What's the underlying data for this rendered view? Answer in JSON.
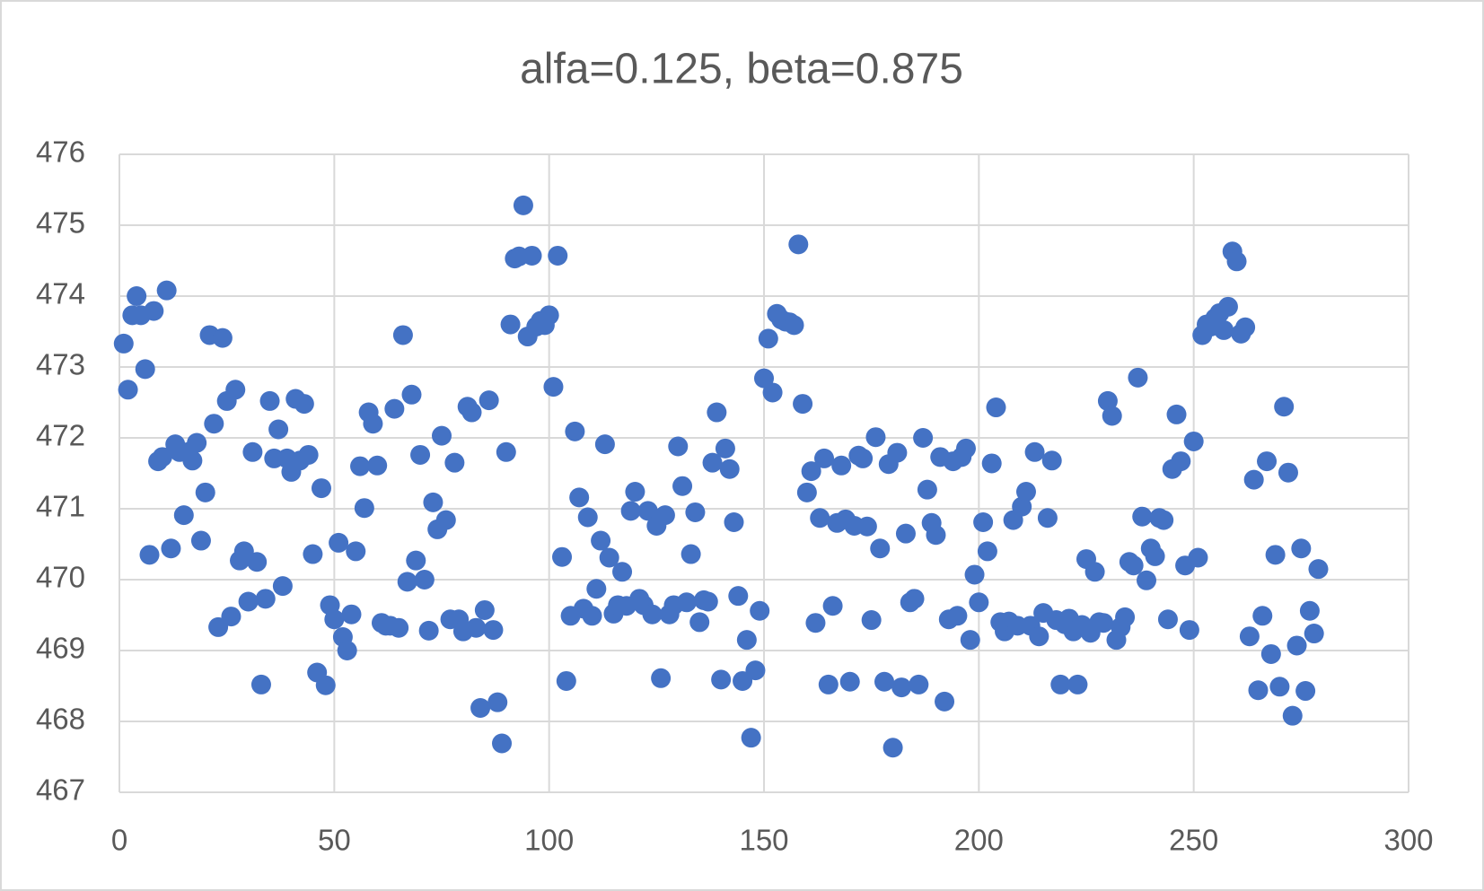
{
  "chart_data": {
    "type": "scatter",
    "title": "alfa=0.125, beta=0.875",
    "color": "#4472c4",
    "grid": true,
    "xlim": [
      0,
      300
    ],
    "xticks": [
      0,
      50,
      100,
      150,
      200,
      250,
      300
    ],
    "ylim": [
      467,
      476
    ],
    "yticks": [
      467,
      468,
      469,
      470,
      471,
      472,
      473,
      474,
      475,
      476
    ],
    "x": [
      1,
      2,
      3,
      4,
      5,
      6,
      7,
      8,
      9,
      10,
      11,
      12,
      13,
      14,
      15,
      16,
      17,
      18,
      19,
      20,
      21,
      22,
      23,
      24,
      25,
      26,
      27,
      28,
      29,
      30,
      31,
      32,
      33,
      34,
      35,
      36,
      37,
      38,
      39,
      40,
      41,
      42,
      43,
      44,
      45,
      46,
      47,
      48,
      49,
      50,
      51,
      52,
      53,
      54,
      55,
      56,
      57,
      58,
      59,
      60,
      61,
      62,
      63,
      64,
      65,
      66,
      67,
      68,
      69,
      70,
      71,
      72,
      73,
      74,
      75,
      76,
      77,
      78,
      79,
      80,
      81,
      82,
      83,
      84,
      85,
      86,
      87,
      88,
      89,
      90,
      91,
      92,
      93,
      94,
      95,
      96,
      97,
      98,
      99,
      100,
      101,
      102,
      103,
      104,
      105,
      106,
      107,
      108,
      109,
      110,
      111,
      112,
      113,
      114,
      115,
      116,
      117,
      118,
      119,
      120,
      121,
      122,
      123,
      124,
      125,
      126,
      127,
      128,
      129,
      130,
      131,
      132,
      133,
      134,
      135,
      136,
      137,
      138,
      139,
      140,
      141,
      142,
      143,
      144,
      145,
      146,
      147,
      148,
      149,
      150,
      151,
      152,
      153,
      154,
      155,
      156,
      157,
      158,
      159,
      160,
      161,
      162,
      163,
      164,
      165,
      166,
      167,
      168,
      169,
      170,
      171,
      172,
      173,
      174,
      175,
      176,
      177,
      178,
      179,
      180,
      181,
      182,
      183,
      184,
      185,
      186,
      187,
      188,
      189,
      190,
      191,
      192,
      193,
      194,
      195,
      196,
      197,
      198,
      199,
      200,
      201,
      202,
      203,
      204,
      205,
      206,
      207,
      208,
      209,
      210,
      211,
      212,
      213,
      214,
      215,
      216,
      217,
      218,
      219,
      220,
      221,
      222,
      223,
      224,
      225,
      226,
      227,
      228,
      229,
      230,
      231,
      232,
      233,
      234,
      235,
      236,
      237,
      238,
      239,
      240,
      241,
      242,
      243,
      244,
      245,
      246,
      247,
      248,
      249,
      250,
      251,
      252,
      253,
      254,
      255,
      256,
      257,
      258,
      259,
      260,
      261,
      262,
      263,
      264,
      265,
      266,
      267,
      268,
      269,
      270,
      271,
      272,
      273,
      274,
      275,
      276,
      277,
      278,
      279
    ],
    "values": [
      473.33,
      472.68,
      473.73,
      474.0,
      473.73,
      472.97,
      470.35,
      473.79,
      471.67,
      471.73,
      474.08,
      470.44,
      471.91,
      471.8,
      470.91,
      471.8,
      471.68,
      471.93,
      470.55,
      471.23,
      473.45,
      472.2,
      469.33,
      473.41,
      472.52,
      469.48,
      472.68,
      470.27,
      470.4,
      469.69,
      471.8,
      470.25,
      468.52,
      469.73,
      472.52,
      471.71,
      472.12,
      469.91,
      471.71,
      471.52,
      472.55,
      471.68,
      472.48,
      471.76,
      470.36,
      468.69,
      471.29,
      468.51,
      469.64,
      469.44,
      470.52,
      469.19,
      469.0,
      469.51,
      470.4,
      471.6,
      471.01,
      472.36,
      472.2,
      471.61,
      469.39,
      469.35,
      469.35,
      472.41,
      469.32,
      473.45,
      469.97,
      472.61,
      470.27,
      471.76,
      470.0,
      469.28,
      471.09,
      470.71,
      472.03,
      470.84,
      469.44,
      471.65,
      469.44,
      469.27,
      472.44,
      472.36,
      469.32,
      468.19,
      469.57,
      472.53,
      469.29,
      468.27,
      467.69,
      471.8,
      473.6,
      474.53,
      474.56,
      475.28,
      473.43,
      474.57,
      473.57,
      473.65,
      473.59,
      473.73,
      472.72,
      474.57,
      470.32,
      468.57,
      469.49,
      472.09,
      471.16,
      469.59,
      470.88,
      469.49,
      469.87,
      470.55,
      471.91,
      470.31,
      469.52,
      469.64,
      470.11,
      469.63,
      470.97,
      471.24,
      469.73,
      469.64,
      470.97,
      469.51,
      470.76,
      468.61,
      470.91,
      469.51,
      469.64,
      471.88,
      471.32,
      469.68,
      470.36,
      470.95,
      469.4,
      469.71,
      469.69,
      471.65,
      472.36,
      468.59,
      471.85,
      471.56,
      470.81,
      469.77,
      468.57,
      469.15,
      467.77,
      468.72,
      469.56,
      472.84,
      473.4,
      472.64,
      473.75,
      473.67,
      473.64,
      473.63,
      473.59,
      474.73,
      472.48,
      471.23,
      471.53,
      469.39,
      470.87,
      471.71,
      468.52,
      469.63,
      470.8,
      471.61,
      470.85,
      468.56,
      470.76,
      471.75,
      471.71,
      470.75,
      469.43,
      472.01,
      470.44,
      468.56,
      471.63,
      467.63,
      471.79,
      468.48,
      470.65,
      469.68,
      469.73,
      468.52,
      472.0,
      471.27,
      470.8,
      470.63,
      471.73,
      468.28,
      469.44,
      471.67,
      469.49,
      471.73,
      471.85,
      469.15,
      470.07,
      469.68,
      470.81,
      470.4,
      471.64,
      472.43,
      469.4,
      469.27,
      469.41,
      470.84,
      469.35,
      471.03,
      471.24,
      469.35,
      471.8,
      469.2,
      469.53,
      470.87,
      471.68,
      469.43,
      468.52,
      469.37,
      469.45,
      469.27,
      468.52,
      469.36,
      470.29,
      469.25,
      470.11,
      469.4,
      469.39,
      472.52,
      472.31,
      469.15,
      469.33,
      469.47,
      470.25,
      470.2,
      472.85,
      470.89,
      469.99,
      470.44,
      470.33,
      470.87,
      470.84,
      469.44,
      471.56,
      472.33,
      471.67,
      470.2,
      469.29,
      471.95,
      470.31,
      473.45,
      473.6,
      473.57,
      473.69,
      473.76,
      473.52,
      473.85,
      474.63,
      474.49,
      473.47,
      473.56,
      469.2,
      471.41,
      468.44,
      469.49,
      471.67,
      468.95,
      470.35,
      468.49,
      472.44,
      471.51,
      468.08,
      469.07,
      470.44,
      468.43,
      469.56,
      469.24,
      470.15
    ]
  }
}
